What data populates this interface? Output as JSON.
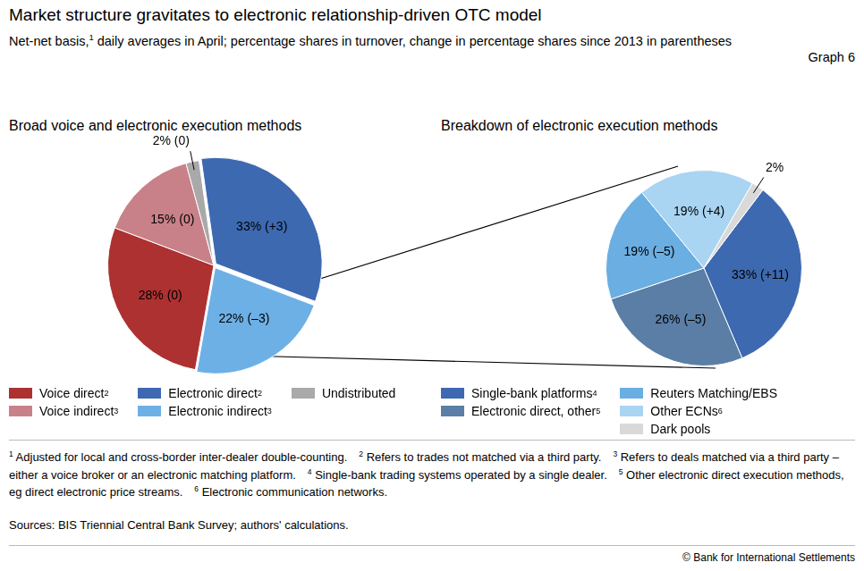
{
  "title": "Market structure gravitates to electronic relationship-driven OTC model",
  "subtitle": {
    "text": "Net-net basis,",
    "note": "1",
    "rest": "daily averages in April; percentage shares in turnover, change in percentage shares since 2013 in parentheses"
  },
  "graph_label": "Graph 6",
  "chart_data": [
    {
      "type": "pie",
      "title": "Broad voice and electronic execution methods",
      "categories": [
        "Electronic direct",
        "Electronic indirect",
        "Voice direct",
        "Voice indirect",
        "Undistributed"
      ],
      "category_notes": [
        "2",
        "3",
        "2",
        "3",
        null
      ],
      "values": [
        33,
        22,
        28,
        15,
        2
      ],
      "value_labels": [
        "33% (+3)",
        "22% (–3)",
        "28% (0)",
        "15% (0)",
        "2% (0)"
      ],
      "colors": [
        "#3d69b1",
        "#6db0e6",
        "#ad3131",
        "#c98189",
        "#a9a9a9"
      ],
      "data_labels": true
    },
    {
      "type": "pie",
      "title": "Breakdown of electronic execution methods",
      "categories": [
        "Single-bank platforms",
        "Electronic direct, other",
        "Reuters Matching/EBS",
        "Other ECNs",
        "Dark pools"
      ],
      "category_notes": [
        "4",
        "5",
        null,
        "6",
        null
      ],
      "values": [
        33,
        26,
        19,
        19,
        2
      ],
      "value_labels": [
        "33% (+11)",
        "26% (–5)",
        "19% (–5)",
        "19% (+4)",
        "2%"
      ],
      "colors": [
        "#3d69b1",
        "#5a7ea6",
        "#6aaee2",
        "#a9d4f2",
        "#d9d9d9"
      ],
      "data_labels": true
    }
  ],
  "footnotes": [
    {
      "mark": "1",
      "text": "Adjusted for local and cross-border inter-dealer double-counting."
    },
    {
      "mark": "2",
      "text": "Refers to trades not matched via a third party."
    },
    {
      "mark": "3",
      "text": "Refers to deals matched via a third party – either a voice broker or an electronic matching platform."
    },
    {
      "mark": "4",
      "text": "Single-bank trading systems operated by a single dealer."
    },
    {
      "mark": "5",
      "text": "Other electronic direct execution methods, eg direct electronic price streams."
    },
    {
      "mark": "6",
      "text": "Electronic communication networks."
    }
  ],
  "source": "Sources: BIS Triennial Central Bank Survey; authors' calculations.",
  "copyright": "© Bank for International Settlements"
}
